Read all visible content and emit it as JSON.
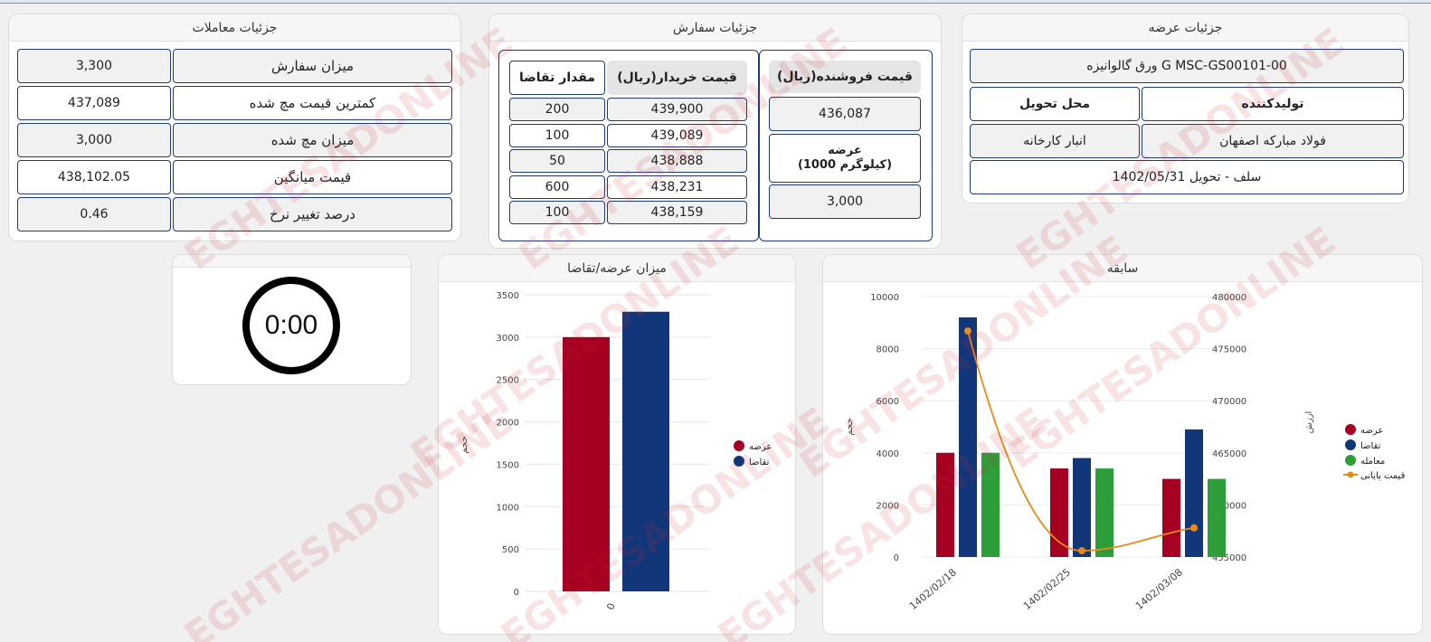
{
  "offer": {
    "title": "جزئیات عرضه",
    "product": "ورق گالوانیزه G MSC-GS00101-00",
    "producer_label": "تولیدکننده",
    "delivery_label": "محل تحویل",
    "producer": "فولاد مبارکه اصفهان",
    "delivery_place": "انبار کارخانه",
    "delivery_info": "سلف - تحویل 1402/05/31"
  },
  "order": {
    "title": "جزئیات سفارش",
    "seller_price_label": "قیمت فروشنده(ریال)",
    "seller_price": "436,087",
    "supply_label_line1": "عرضه",
    "supply_label_line2": "(1000 کیلوگرم)",
    "supply_value": "3,000",
    "buyer_price_label": "قیمت خریدار(ریال)",
    "demand_qty_label": "مقدار تقاضا",
    "rows": [
      {
        "price": "439,900",
        "qty": "200"
      },
      {
        "price": "439,089",
        "qty": "100"
      },
      {
        "price": "438,888",
        "qty": "50"
      },
      {
        "price": "438,231",
        "qty": "600"
      },
      {
        "price": "438,159",
        "qty": "100"
      }
    ]
  },
  "trades": {
    "title": "جزئیات معاملات",
    "rows": [
      {
        "label": "میزان سفارش",
        "value": "3,300"
      },
      {
        "label": "کمترین قیمت مچ شده",
        "value": "437,089"
      },
      {
        "label": "میزان مچ شده",
        "value": "3,000"
      },
      {
        "label": "قیمت میانگین",
        "value": "438,102.05"
      },
      {
        "label": "درصد تغییر نرخ",
        "value": "0.46"
      }
    ]
  },
  "timer": {
    "value": "0:00"
  },
  "supply_demand_chart": {
    "title": "میزان عرضه/تقاضا",
    "ylabel": "حجم",
    "ticks": [
      "3500",
      "3000",
      "2500",
      "2000",
      "1500",
      "1000",
      "500",
      "0"
    ],
    "legend": [
      "عرضه",
      "تقاضا"
    ]
  },
  "history_chart": {
    "title": "سابقه",
    "ylabel_left": "حجم",
    "ylabel_right": "ارزش",
    "left_ticks": [
      "10000",
      "8000",
      "6000",
      "4000",
      "2000",
      "0"
    ],
    "right_ticks": [
      "480000",
      "475000",
      "470000",
      "465000",
      "460000",
      "455000"
    ],
    "legend": [
      "عرضه",
      "تقاضا",
      "معامله",
      "قیمت پایانی"
    ]
  },
  "chart_data": [
    {
      "type": "bar",
      "categories": [
        "0"
      ],
      "series": [
        {
          "name": "عرضه",
          "values": [
            3000
          ]
        },
        {
          "name": "تقاضا",
          "values": [
            3300
          ]
        }
      ],
      "title": "میزان عرضه/تقاضا",
      "ylabel": "حجم",
      "ylim": [
        0,
        3500
      ],
      "legend": "right",
      "colors": [
        "#a50021",
        "#12367a"
      ]
    },
    {
      "type": "bar",
      "categories": [
        "1402/02/18",
        "1402/02/25",
        "1402/03/08"
      ],
      "series": [
        {
          "name": "عرضه",
          "values": [
            4000,
            3400,
            3000
          ]
        },
        {
          "name": "تقاضا",
          "values": [
            9200,
            3800,
            4900
          ]
        },
        {
          "name": "معامله",
          "values": [
            4000,
            3400,
            3000
          ]
        },
        {
          "name": "قیمت پایانی",
          "type": "line",
          "axis": "right",
          "values": [
            476700,
            455600,
            457800
          ]
        }
      ],
      "title": "سابقه",
      "ylabel": "حجم",
      "ylabel_right": "ارزش",
      "ylim": [
        0,
        10000
      ],
      "ylim_right": [
        455000,
        480000
      ],
      "legend": "right",
      "colors": [
        "#a50021",
        "#12367a",
        "#2e9e3a",
        "#e88a1a"
      ]
    }
  ]
}
